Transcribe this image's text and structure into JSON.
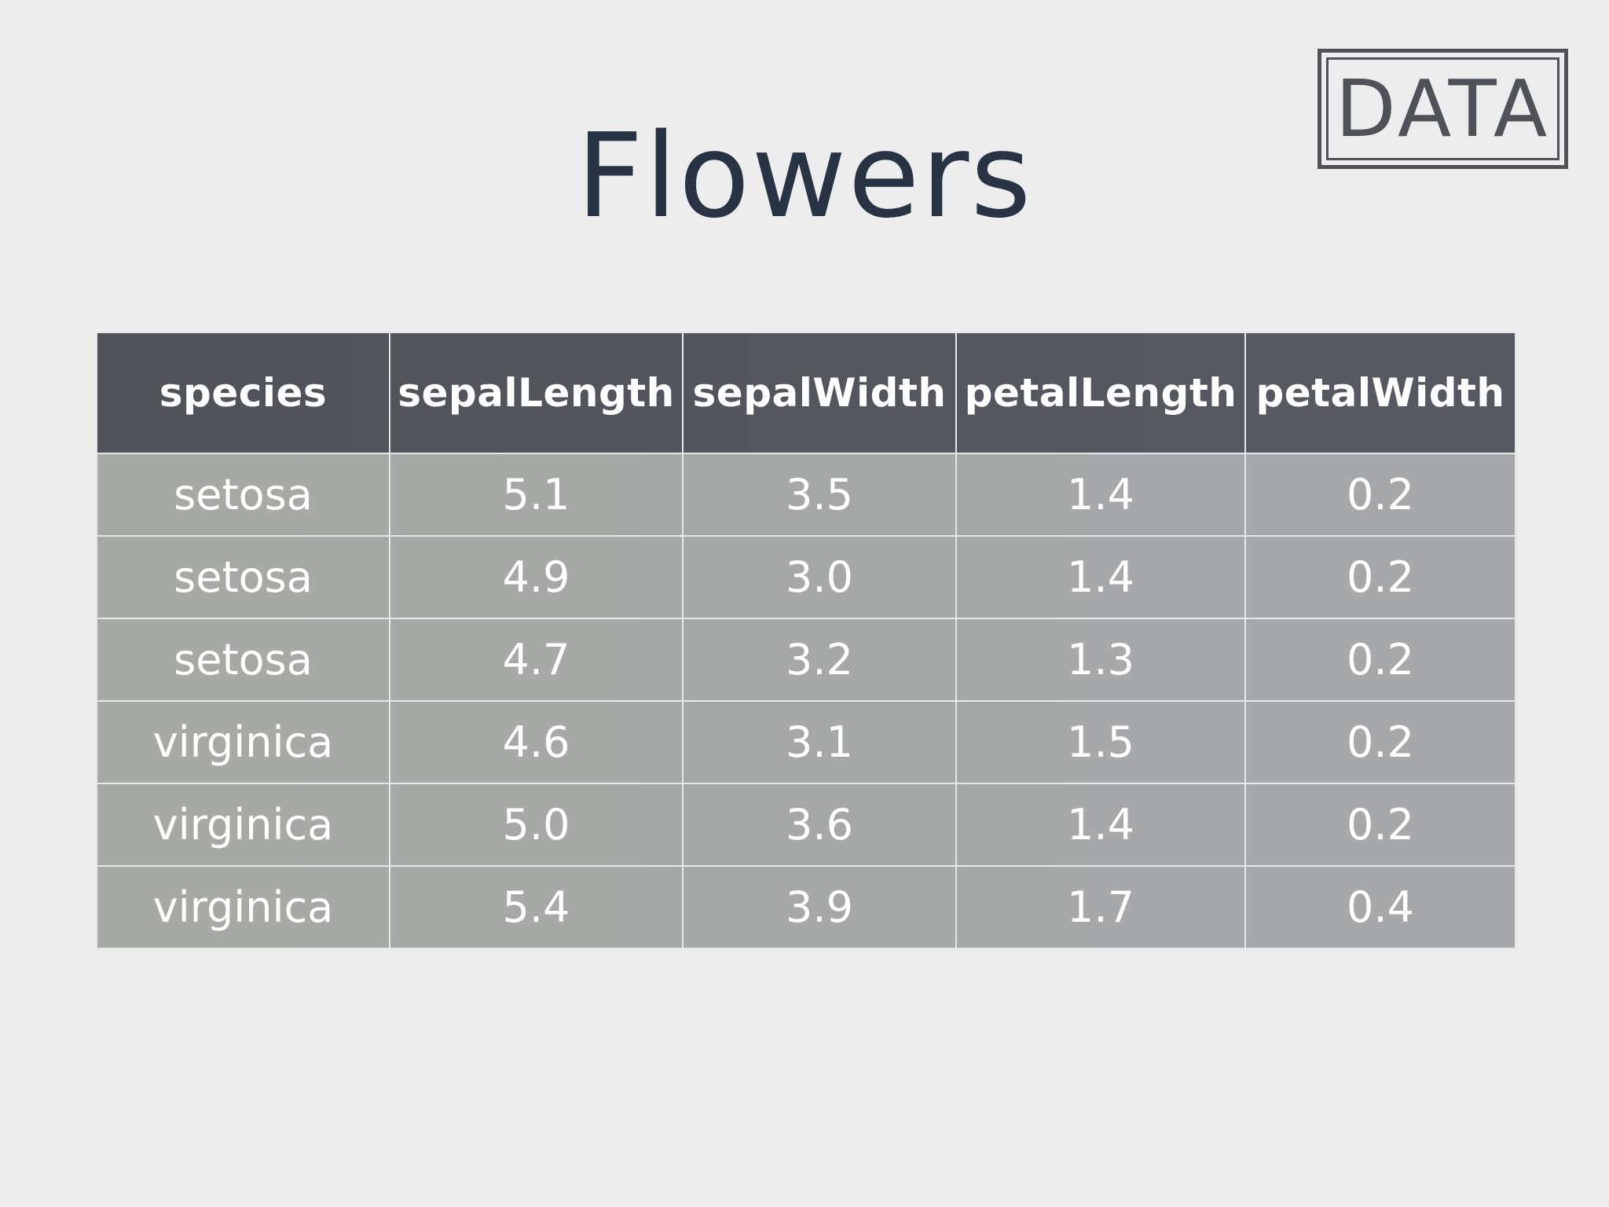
{
  "slide": {
    "title": "Flowers",
    "badge": "DATA"
  },
  "colors": {
    "background": "#ededee",
    "title_text": "#283444",
    "badge": "#4f5257",
    "header_bg_start": "#4f5358",
    "header_bg_end": "#575b61",
    "body_bg_start": "#a7a9a4",
    "body_bg_end": "#a6a8ab",
    "cell_text": "#ffffff",
    "grid_line": "#e6e7e8"
  },
  "table": {
    "columns": [
      "species",
      "sepalLength",
      "sepalWidth",
      "petalLength",
      "petalWidth"
    ],
    "rows": [
      [
        "setosa",
        "5.1",
        "3.5",
        "1.4",
        "0.2"
      ],
      [
        "setosa",
        "4.9",
        "3.0",
        "1.4",
        "0.2"
      ],
      [
        "setosa",
        "4.7",
        "3.2",
        "1.3",
        "0.2"
      ],
      [
        "virginica",
        "4.6",
        "3.1",
        "1.5",
        "0.2"
      ],
      [
        "virginica",
        "5.0",
        "3.6",
        "1.4",
        "0.2"
      ],
      [
        "virginica",
        "5.4",
        "3.9",
        "1.7",
        "0.4"
      ]
    ]
  }
}
